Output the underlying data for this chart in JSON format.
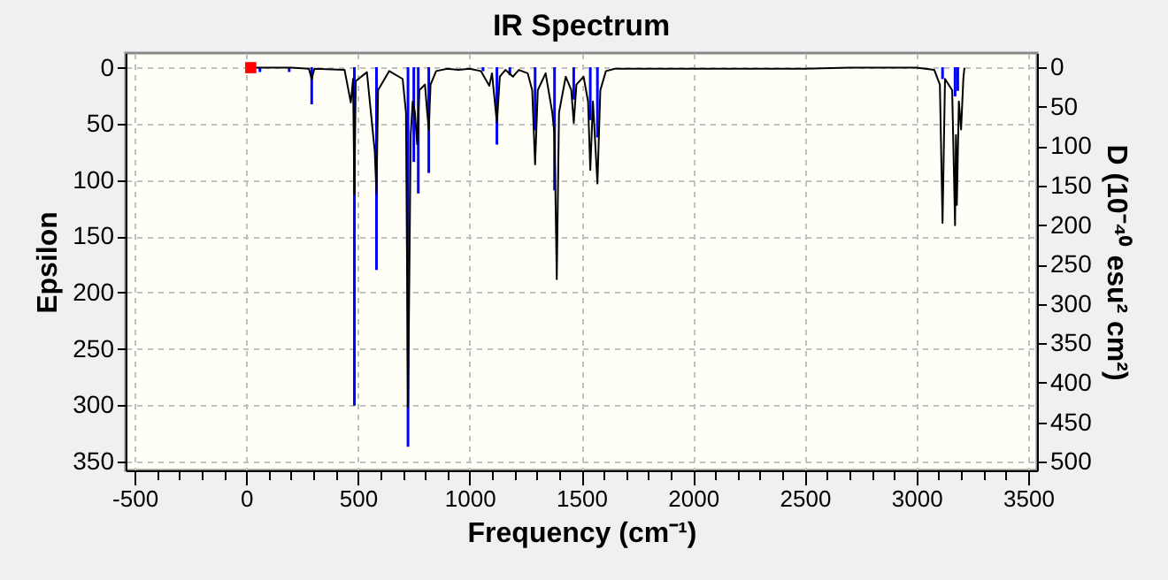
{
  "chart_data": {
    "type": "line",
    "title": "IR Spectrum",
    "xlabel": "Frequency (cm⁻¹)",
    "ylabel": "Epsilon",
    "y2label": "D (10⁻⁴⁰ esu² cm²)",
    "xlim": [
      -540,
      3540
    ],
    "xticks": [
      -500,
      {
        "value": -400,
        "label": null
      },
      {
        "value": -300,
        "label": null
      },
      {
        "value": -200,
        "label": null
      },
      {
        "value": -100,
        "label": null
      },
      0,
      {
        "value": 100,
        "label": null
      },
      {
        "value": 200,
        "label": null
      },
      {
        "value": 300,
        "label": null
      },
      {
        "value": 400,
        "label": null
      },
      500,
      {
        "value": 600,
        "label": null
      },
      {
        "value": 700,
        "label": null
      },
      {
        "value": 800,
        "label": null
      },
      {
        "value": 900,
        "label": null
      },
      1000,
      {
        "value": 1100,
        "label": null
      },
      {
        "value": 1200,
        "label": null
      },
      {
        "value": 1300,
        "label": null
      },
      {
        "value": 1400,
        "label": null
      },
      1500,
      {
        "value": 1600,
        "label": null
      },
      {
        "value": 1700,
        "label": null
      },
      {
        "value": 1800,
        "label": null
      },
      {
        "value": 1900,
        "label": null
      },
      2000,
      {
        "value": 2100,
        "label": null
      },
      {
        "value": 2200,
        "label": null
      },
      {
        "value": 2300,
        "label": null
      },
      {
        "value": 2400,
        "label": null
      },
      2500,
      {
        "value": 2600,
        "label": null
      },
      {
        "value": 2700,
        "label": null
      },
      {
        "value": 2800,
        "label": null
      },
      {
        "value": 2900,
        "label": null
      },
      3000,
      {
        "value": 3100,
        "label": null
      },
      {
        "value": 3200,
        "label": null
      },
      {
        "value": 3300,
        "label": null
      },
      {
        "value": 3400,
        "label": null
      },
      3500
    ],
    "ylim": [
      358,
      -13
    ],
    "yticks": [
      0,
      50,
      100,
      150,
      200,
      250,
      300,
      350
    ],
    "y2lim": [
      511,
      -18
    ],
    "y2ticks": [
      0,
      50,
      100,
      150,
      200,
      250,
      300,
      350,
      400,
      450,
      500
    ],
    "grid": true,
    "series": [
      {
        "color": "#000000",
        "x": [
          20,
          200,
          280,
          293,
          305,
          440,
          468,
          478,
          484,
          490,
          540,
          575,
          583,
          590,
          640,
          700,
          715,
          724,
          730,
          736,
          745,
          755,
          765,
          775,
          800,
          810,
          817,
          825,
          850,
          900,
          950,
          1000,
          1050,
          1088,
          1100,
          1122,
          1135,
          1160,
          1194,
          1220,
          1260,
          1280,
          1293,
          1305,
          1340,
          1370,
          1380,
          1390,
          1400,
          1430,
          1455,
          1466,
          1478,
          1510,
          1530,
          1540,
          1552,
          1572,
          1585,
          1610,
          1650,
          2000,
          2500,
          2700,
          3000,
          3080,
          3105,
          3117,
          3128,
          3160,
          3173,
          3177,
          3181,
          3190,
          3200,
          3210,
          3215
        ],
        "values": [
          0,
          0,
          1,
          10,
          1,
          2,
          31,
          10,
          112,
          12,
          4,
          74,
          112,
          20,
          3,
          10,
          40,
          302,
          187,
          60,
          30,
          40,
          68,
          20,
          15,
          40,
          55,
          15,
          3,
          1,
          2,
          1,
          3,
          16,
          5,
          49,
          8,
          2,
          8,
          2,
          5,
          20,
          86,
          20,
          5,
          40,
          60,
          188,
          40,
          8,
          20,
          49,
          15,
          8,
          30,
          91,
          30,
          103,
          20,
          3,
          1,
          1,
          1,
          0,
          0,
          2,
          15,
          138,
          10,
          20,
          140,
          60,
          122,
          30,
          55,
          10,
          0
        ]
      },
      {
        "type": "bar",
        "axis": "y2",
        "color": "#0000ff",
        "x": [
          61,
          192,
          293,
          484,
          583,
          724,
          750,
          770,
          817,
          1060,
          1122,
          1180,
          1293,
          1380,
          1466,
          1540,
          1572,
          3117,
          3173,
          3185
        ],
        "values": [
          6,
          6,
          47,
          429,
          257,
          481,
          120,
          160,
          134,
          5,
          98,
          10,
          80,
          156,
          41,
          67,
          89,
          15,
          37,
          30
        ]
      },
      {
        "type": "scatter",
        "marker": "square",
        "color": "#ff0000",
        "x": [
          20
        ],
        "values": [
          0
        ]
      }
    ]
  }
}
